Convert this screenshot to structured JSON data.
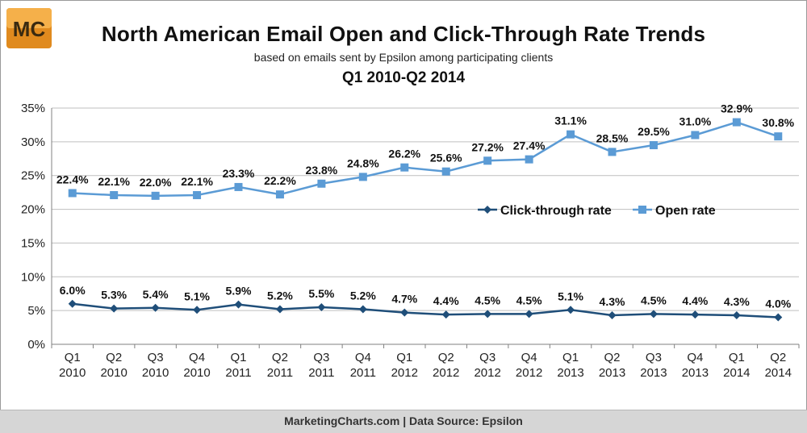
{
  "header": {
    "logo_text": "MC",
    "title": "North American Email Open and Click-Through Rate Trends",
    "subtitle": "based on emails sent by Epsilon among participating clients",
    "period": "Q1 2010-Q2 2014"
  },
  "footer": {
    "text": "MarketingCharts.com | Data Source: Epsilon"
  },
  "colors": {
    "click_through": "#1f4e79",
    "open_rate": "#5b9bd5",
    "logo_bg": "#f0a030",
    "grid": "#bfbfbf",
    "axis": "#808080"
  },
  "chart_data": {
    "type": "line",
    "title": "North American Email Open and Click-Through Rate Trends",
    "subtitle": "based on emails sent by Epsilon among participating clients",
    "categories": [
      [
        "Q1",
        "2010"
      ],
      [
        "Q2",
        "2010"
      ],
      [
        "Q3",
        "2010"
      ],
      [
        "Q4",
        "2010"
      ],
      [
        "Q1",
        "2011"
      ],
      [
        "Q2",
        "2011"
      ],
      [
        "Q3",
        "2011"
      ],
      [
        "Q4",
        "2011"
      ],
      [
        "Q1",
        "2012"
      ],
      [
        "Q2",
        "2012"
      ],
      [
        "Q3",
        "2012"
      ],
      [
        "Q4",
        "2012"
      ],
      [
        "Q1",
        "2013"
      ],
      [
        "Q2",
        "2013"
      ],
      [
        "Q3",
        "2013"
      ],
      [
        "Q4",
        "2013"
      ],
      [
        "Q1",
        "2014"
      ],
      [
        "Q2",
        "2014"
      ]
    ],
    "ylim": [
      0,
      35
    ],
    "yticks": [
      "0%",
      "5%",
      "10%",
      "15%",
      "20%",
      "25%",
      "30%",
      "35%"
    ],
    "grid": true,
    "legend_position": "right-middle",
    "series": [
      {
        "name": "Click-through rate",
        "marker": "diamond",
        "values": [
          6.0,
          5.3,
          5.4,
          5.1,
          5.9,
          5.2,
          5.5,
          5.2,
          4.7,
          4.4,
          4.5,
          4.5,
          5.1,
          4.3,
          4.5,
          4.4,
          4.3,
          4.0
        ],
        "labels": [
          "6.0%",
          "5.3%",
          "5.4%",
          "5.1%",
          "5.9%",
          "5.2%",
          "5.5%",
          "5.2%",
          "4.7%",
          "4.4%",
          "4.5%",
          "4.5%",
          "5.1%",
          "4.3%",
          "4.5%",
          "4.4%",
          "4.3%",
          "4.0%"
        ]
      },
      {
        "name": "Open rate",
        "marker": "square",
        "values": [
          22.4,
          22.1,
          22.0,
          22.1,
          23.3,
          22.2,
          23.8,
          24.8,
          26.2,
          25.6,
          27.2,
          27.4,
          31.1,
          28.5,
          29.5,
          31.0,
          32.9,
          30.8
        ],
        "labels": [
          "22.4%",
          "22.1%",
          "22.0%",
          "22.1%",
          "23.3%",
          "22.2%",
          "23.8%",
          "24.8%",
          "26.2%",
          "25.6%",
          "27.2%",
          "27.4%",
          "31.1%",
          "28.5%",
          "29.5%",
          "31.0%",
          "32.9%",
          "30.8%"
        ]
      }
    ]
  }
}
